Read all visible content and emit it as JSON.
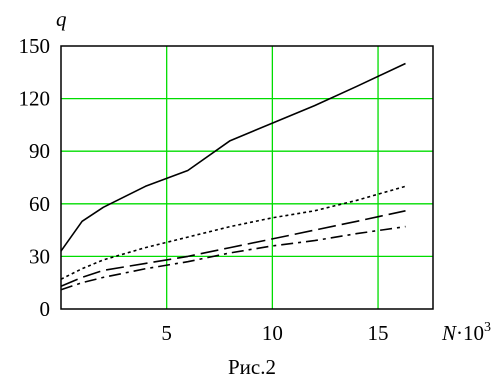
{
  "chart_data": {
    "type": "line",
    "ylabel": "q",
    "xlabel_main": "N",
    "xlabel_mult": "·10",
    "xlabel_exp": "3",
    "caption": "Рис.2",
    "xlim": [
      0,
      17.6
    ],
    "ylim": [
      0,
      150
    ],
    "x_ticks": [
      5,
      10,
      15
    ],
    "y_ticks": [
      0,
      30,
      60,
      90,
      120,
      150
    ],
    "grid": true,
    "colors": {
      "grid": "#00dd00",
      "line": "#000000",
      "axis": "#000000"
    },
    "series": [
      {
        "style": "solid",
        "x": [
          0,
          1,
          2,
          4,
          6,
          8,
          10,
          12,
          14,
          16.3
        ],
        "y": [
          33,
          50,
          58,
          70,
          79,
          96,
          106,
          116,
          127,
          140
        ]
      },
      {
        "style": "dotted",
        "x": [
          0,
          1,
          2,
          4,
          6,
          8,
          10,
          12,
          14,
          16.3
        ],
        "y": [
          17,
          23,
          28,
          35,
          41,
          47,
          52,
          56,
          62,
          70
        ]
      },
      {
        "style": "long-dash",
        "x": [
          0,
          1,
          2,
          4,
          6,
          8,
          10,
          12,
          14,
          16.3
        ],
        "y": [
          13,
          18,
          22,
          26,
          30,
          35,
          40,
          45,
          50,
          56
        ]
      },
      {
        "style": "dash-dot",
        "x": [
          0,
          1,
          2,
          4,
          6,
          8,
          10,
          12,
          14,
          16.3
        ],
        "y": [
          11,
          15,
          18,
          23,
          27,
          32,
          36,
          39,
          43,
          47
        ]
      }
    ]
  }
}
